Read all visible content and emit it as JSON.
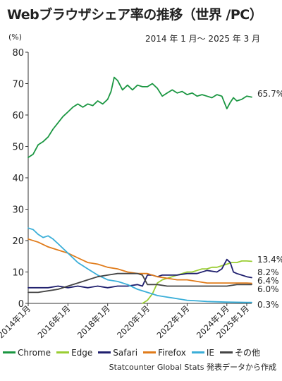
{
  "header": {
    "title": "Webブラウザシェア率の推移（世界 /PC）",
    "period": "2014 年 1 月〜 2025 年 3 月",
    "unit": "(%)"
  },
  "footer": {
    "source": "Statcounter Global Stats 発表データから作成"
  },
  "colors": {
    "Chrome": "#1a9641",
    "Edge": "#9acd32",
    "Safari": "#1f1f6e",
    "Firefox": "#e07b1a",
    "IE": "#3aaed8",
    "その他": "#444444"
  },
  "chart_data": {
    "type": "line",
    "title": "Webブラウザシェア率の推移（世界 /PC）",
    "xlabel": "",
    "ylabel": "(%)",
    "ylim": [
      0,
      80
    ],
    "yticks": [
      "0",
      "10",
      "20",
      "30",
      "40",
      "50",
      "60",
      "70",
      "80"
    ],
    "xlim": [
      2014.0,
      2025.25
    ],
    "xticks": [
      {
        "pos": 2014.0,
        "label": "2014年1月"
      },
      {
        "pos": 2016.0,
        "label": "2016年1月"
      },
      {
        "pos": 2018.0,
        "label": "2018年1月"
      },
      {
        "pos": 2020.0,
        "label": "2020年1月"
      },
      {
        "pos": 2022.0,
        "label": "2022年1月"
      },
      {
        "pos": 2024.0,
        "label": "2024年1月"
      },
      {
        "pos": 2025.0,
        "label": "2025年1月"
      }
    ],
    "grid": false,
    "legend_position": "bottom",
    "series": [
      {
        "name": "Chrome",
        "end_label": "65.7%",
        "x": [
          2014.0,
          2014.25,
          2014.5,
          2014.75,
          2015.0,
          2015.25,
          2015.5,
          2015.75,
          2016.0,
          2016.25,
          2016.5,
          2016.75,
          2017.0,
          2017.25,
          2017.5,
          2017.75,
          2018.0,
          2018.17,
          2018.33,
          2018.5,
          2018.75,
          2019.0,
          2019.25,
          2019.5,
          2019.75,
          2020.0,
          2020.25,
          2020.5,
          2020.75,
          2021.0,
          2021.25,
          2021.5,
          2021.75,
          2022.0,
          2022.25,
          2022.5,
          2022.75,
          2023.0,
          2023.25,
          2023.5,
          2023.75,
          2024.0,
          2024.17,
          2024.33,
          2024.5,
          2024.75,
          2025.0,
          2025.25
        ],
        "values": [
          46.5,
          47.5,
          50.5,
          51.5,
          53.0,
          55.5,
          57.5,
          59.5,
          61.0,
          62.5,
          63.5,
          62.5,
          63.5,
          63.0,
          64.5,
          63.5,
          65.0,
          67.5,
          72.0,
          71.0,
          68.0,
          69.5,
          68.0,
          69.5,
          69.0,
          69.0,
          70.0,
          68.5,
          66.0,
          67.0,
          68.0,
          67.0,
          67.5,
          66.5,
          67.0,
          66.0,
          66.5,
          66.0,
          65.5,
          66.5,
          66.0,
          62.0,
          64.0,
          65.5,
          64.5,
          65.0,
          66.0,
          65.7
        ]
      },
      {
        "name": "Edge",
        "end_label": "13.4%",
        "x": [
          2019.75,
          2020.0,
          2020.25,
          2020.5,
          2020.75,
          2021.0,
          2021.25,
          2021.5,
          2021.75,
          2022.0,
          2022.25,
          2022.5,
          2022.75,
          2023.0,
          2023.25,
          2023.5,
          2023.75,
          2024.0,
          2024.25,
          2024.5,
          2024.75,
          2025.0,
          2025.25
        ],
        "values": [
          0.0,
          1.0,
          3.0,
          6.5,
          7.5,
          8.0,
          8.5,
          9.0,
          9.5,
          10.0,
          10.0,
          10.5,
          11.0,
          11.0,
          11.5,
          11.5,
          12.0,
          12.5,
          13.0,
          13.0,
          13.5,
          13.5,
          13.4
        ]
      },
      {
        "name": "Safari",
        "end_label": "8.2%",
        "x": [
          2014.0,
          2014.5,
          2015.0,
          2015.5,
          2016.0,
          2016.5,
          2017.0,
          2017.5,
          2018.0,
          2018.5,
          2019.0,
          2019.5,
          2019.75,
          2020.0,
          2020.25,
          2020.5,
          2020.75,
          2021.0,
          2021.5,
          2022.0,
          2022.5,
          2023.0,
          2023.5,
          2023.75,
          2024.0,
          2024.17,
          2024.33,
          2024.5,
          2024.75,
          2025.0,
          2025.25
        ],
        "values": [
          5.0,
          5.0,
          5.0,
          5.5,
          5.0,
          5.5,
          5.0,
          5.5,
          5.0,
          5.5,
          5.5,
          6.0,
          5.5,
          9.0,
          9.0,
          8.5,
          9.0,
          9.0,
          9.0,
          9.5,
          9.5,
          10.5,
          10.0,
          11.0,
          14.0,
          13.0,
          10.0,
          9.5,
          9.0,
          8.5,
          8.2
        ]
      },
      {
        "name": "Firefox",
        "end_label": "6.4%",
        "x": [
          2014.0,
          2014.5,
          2015.0,
          2015.5,
          2016.0,
          2016.5,
          2017.0,
          2017.5,
          2018.0,
          2018.5,
          2019.0,
          2019.5,
          2020.0,
          2020.5,
          2021.0,
          2021.5,
          2022.0,
          2022.5,
          2023.0,
          2023.5,
          2024.0,
          2024.5,
          2025.0,
          2025.25
        ],
        "values": [
          20.5,
          19.5,
          18.0,
          17.0,
          16.0,
          14.5,
          13.0,
          12.5,
          11.5,
          11.0,
          10.0,
          9.5,
          9.5,
          8.5,
          8.0,
          7.5,
          7.5,
          7.0,
          6.5,
          6.5,
          6.5,
          6.5,
          6.5,
          6.4
        ]
      },
      {
        "name": "IE",
        "end_label": "0.3%",
        "x": [
          2014.0,
          2014.25,
          2014.5,
          2014.75,
          2015.0,
          2015.25,
          2015.5,
          2016.0,
          2016.5,
          2017.0,
          2017.5,
          2018.0,
          2018.5,
          2019.0,
          2019.5,
          2020.0,
          2020.5,
          2021.0,
          2021.5,
          2022.0,
          2022.5,
          2023.0,
          2024.0,
          2025.0,
          2025.25
        ],
        "values": [
          24.0,
          23.5,
          22.0,
          21.0,
          21.5,
          20.5,
          19.0,
          16.0,
          13.0,
          11.0,
          9.0,
          7.5,
          7.0,
          6.0,
          4.5,
          3.5,
          2.5,
          2.0,
          1.5,
          1.0,
          0.8,
          0.6,
          0.4,
          0.3,
          0.3
        ]
      },
      {
        "name": "その他",
        "end_label": "6.0%",
        "x": [
          2014.0,
          2014.5,
          2015.0,
          2015.5,
          2016.0,
          2016.5,
          2017.0,
          2017.5,
          2018.0,
          2018.5,
          2019.0,
          2019.5,
          2019.75,
          2020.0,
          2020.5,
          2021.0,
          2021.5,
          2022.0,
          2022.5,
          2023.0,
          2023.5,
          2024.0,
          2024.5,
          2025.0,
          2025.25
        ],
        "values": [
          3.5,
          3.5,
          4.0,
          4.5,
          5.5,
          6.5,
          7.5,
          8.5,
          9.0,
          9.5,
          9.5,
          9.5,
          9.0,
          6.0,
          6.0,
          5.5,
          5.5,
          5.5,
          5.5,
          5.5,
          5.5,
          5.5,
          6.0,
          6.0,
          6.0
        ]
      }
    ]
  }
}
